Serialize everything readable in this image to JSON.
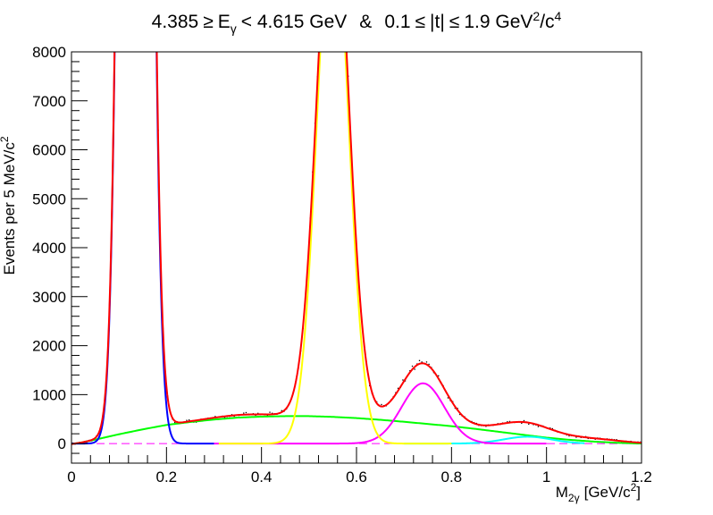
{
  "chart_data": {
    "type": "line",
    "title_parts": {
      "lower": "4.385",
      "geq": "≥",
      "e": "E",
      "gamma_sub": "γ",
      "upper_rel": "< 4.615 GeV",
      "amp": "&",
      "t_low": "0.1",
      "leq1": "≤",
      "t_abs": "|t|",
      "leq2": "≤",
      "t_high": "1.9 GeV",
      "sup2": "2",
      "per_c": "/c",
      "sup4": "4"
    },
    "xlabel_parts": {
      "m": "M",
      "sub": "2γ",
      "unit": "[GeV/c",
      "sup": "2",
      "close": "]"
    },
    "ylabel_parts": {
      "main": "Events per 5 MeV/c",
      "sup": "2"
    },
    "xlim": [
      0,
      1.2
    ],
    "ylim": [
      -400,
      8000
    ],
    "x_ticks": [
      "0",
      "0.2",
      "0.4",
      "0.6",
      "0.8",
      "1",
      "1.2"
    ],
    "y_ticks": [
      "0",
      "1000",
      "2000",
      "3000",
      "4000",
      "5000",
      "6000",
      "7000",
      "8000"
    ],
    "grid": false,
    "colors": {
      "total_fit": "#ff0000",
      "pi0_peak": "#0000ff",
      "eta_peak": "#ffff00",
      "omega_peak": "#ff00ff",
      "high_mass_peak": "#00ffff",
      "background": "#00ff00",
      "zero_line": "#ff00ff",
      "data_points": "#000000"
    },
    "series": [
      {
        "key": "pi0_peak",
        "color": "#0000ff",
        "components": [
          {
            "type": "gauss",
            "amp": 60000,
            "mu": 0.135,
            "sigma": 0.022
          }
        ],
        "range": [
          0,
          0.3
        ]
      },
      {
        "key": "eta_peak",
        "color": "#ffff00",
        "components": [
          {
            "type": "gauss",
            "amp": 11000,
            "mu": 0.55,
            "sigma": 0.033
          }
        ],
        "range": [
          0.31,
          0.8
        ]
      },
      {
        "key": "omega_peak",
        "color": "#ff00ff",
        "components": [
          {
            "type": "gauss",
            "amp": 1230,
            "mu": 0.74,
            "sigma": 0.045
          }
        ],
        "range": [
          0.3,
          1.0
        ]
      },
      {
        "key": "high_mass_peak",
        "color": "#00ffff",
        "components": [
          {
            "type": "gauss",
            "amp": 140,
            "mu": 0.96,
            "sigma": 0.05
          }
        ],
        "range": [
          0.7,
          1.08
        ]
      },
      {
        "key": "background",
        "color": "#00ff00",
        "components": [
          {
            "type": "background"
          }
        ],
        "range": [
          0,
          1.2
        ]
      }
    ],
    "background_points": [
      [
        0.0,
        -10
      ],
      [
        0.02,
        20
      ],
      [
        0.05,
        80
      ],
      [
        0.1,
        190
      ],
      [
        0.15,
        290
      ],
      [
        0.2,
        380
      ],
      [
        0.25,
        440
      ],
      [
        0.3,
        490
      ],
      [
        0.35,
        530
      ],
      [
        0.4,
        550
      ],
      [
        0.45,
        560
      ],
      [
        0.5,
        560
      ],
      [
        0.55,
        545
      ],
      [
        0.6,
        520
      ],
      [
        0.65,
        485
      ],
      [
        0.7,
        445
      ],
      [
        0.75,
        400
      ],
      [
        0.8,
        355
      ],
      [
        0.85,
        300
      ],
      [
        0.9,
        240
      ],
      [
        0.95,
        180
      ],
      [
        1.0,
        120
      ],
      [
        1.05,
        75
      ],
      [
        1.1,
        40
      ],
      [
        1.15,
        15
      ],
      [
        1.2,
        0
      ]
    ],
    "total_fit_extra": [
      {
        "type": "gauss",
        "amp": 55,
        "mu": 0.36,
        "sigma": 0.07
      },
      {
        "type": "gauss",
        "amp": 120,
        "mu": 0.95,
        "sigma": 0.06
      },
      {
        "type": "gauss",
        "amp": 60,
        "mu": 1.1,
        "sigma": 0.06
      }
    ],
    "zero_line_range": [
      0,
      1.2
    ]
  }
}
